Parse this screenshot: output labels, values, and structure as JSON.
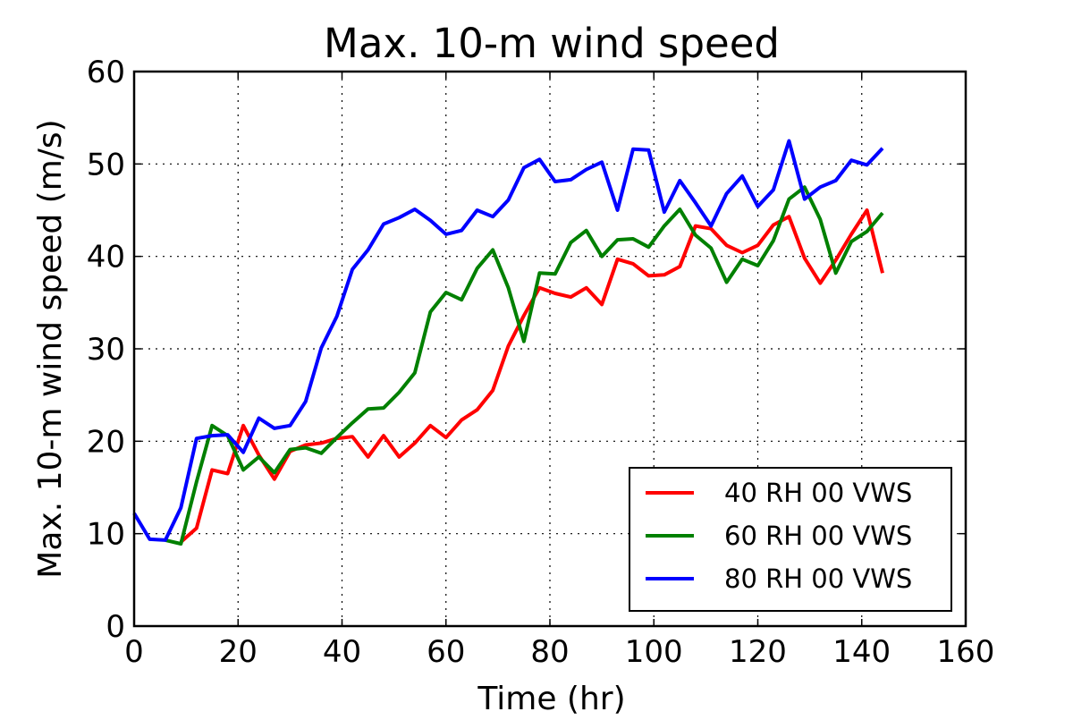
{
  "chart_data": {
    "type": "line",
    "title": "Max. 10-m wind speed",
    "xlabel": "Time (hr)",
    "ylabel": "Max. 10-m wind speed (m/s)",
    "xlim": [
      0,
      160
    ],
    "ylim": [
      0,
      60
    ],
    "xticks": [
      "0",
      "20",
      "40",
      "60",
      "80",
      "100",
      "120",
      "140",
      "160"
    ],
    "yticks": [
      "0",
      "10",
      "20",
      "30",
      "40",
      "50",
      "60"
    ],
    "grid": true,
    "legend_position": "lower-right",
    "x": [
      0,
      3,
      6,
      9,
      12,
      15,
      18,
      21,
      24,
      27,
      30,
      33,
      36,
      39,
      42,
      45,
      48,
      51,
      54,
      57,
      60,
      63,
      66,
      69,
      72,
      75,
      78,
      81,
      84,
      87,
      90,
      93,
      96,
      99,
      102,
      105,
      108,
      111,
      114,
      117,
      120,
      123,
      126,
      129,
      132,
      135,
      138,
      141,
      144
    ],
    "series": [
      {
        "name": "40 RH 00 VWS",
        "color": "#ff0000",
        "values": [
          null,
          null,
          null,
          9.1,
          10.6,
          16.9,
          16.5,
          21.7,
          18.5,
          15.9,
          18.9,
          19.6,
          19.8,
          20.3,
          20.5,
          18.3,
          20.6,
          18.3,
          19.8,
          21.7,
          20.4,
          22.3,
          23.4,
          25.5,
          30.3,
          33.6,
          36.6,
          36.0,
          35.6,
          36.6,
          34.8,
          39.7,
          39.2,
          37.9,
          38.0,
          38.9,
          43.3,
          43.0,
          41.2,
          40.4,
          41.2,
          43.4,
          44.3,
          39.8,
          37.1,
          39.6,
          42.4,
          45.0,
          38.2
        ]
      },
      {
        "name": "60 RH 00 VWS",
        "color": "#008000",
        "values": [
          null,
          null,
          9.3,
          8.9,
          15.6,
          21.7,
          20.6,
          16.9,
          18.3,
          16.6,
          19.1,
          19.3,
          18.7,
          20.4,
          22.0,
          23.5,
          23.6,
          25.3,
          27.4,
          34.0,
          36.1,
          35.3,
          38.7,
          40.7,
          36.6,
          30.8,
          38.2,
          38.1,
          41.5,
          42.8,
          40.0,
          41.8,
          41.9,
          41.0,
          43.3,
          45.1,
          42.3,
          40.9,
          37.2,
          39.7,
          39.0,
          41.7,
          46.2,
          47.5,
          44.0,
          38.2,
          41.6,
          42.7,
          44.7
        ]
      },
      {
        "name": "80 RH 00 VWS",
        "color": "#0000ff",
        "values": [
          12.2,
          9.4,
          9.3,
          12.8,
          20.3,
          20.6,
          20.7,
          18.8,
          22.5,
          21.4,
          21.7,
          24.3,
          30.1,
          33.5,
          38.6,
          40.7,
          43.5,
          44.2,
          45.1,
          43.9,
          42.4,
          42.8,
          45.0,
          44.3,
          46.1,
          49.6,
          50.5,
          48.1,
          48.3,
          49.4,
          50.2,
          45.0,
          51.6,
          51.5,
          44.8,
          48.2,
          45.8,
          43.3,
          46.8,
          48.7,
          45.4,
          47.2,
          52.5,
          46.2,
          47.5,
          48.2,
          50.4,
          49.9,
          51.7
        ]
      }
    ]
  }
}
